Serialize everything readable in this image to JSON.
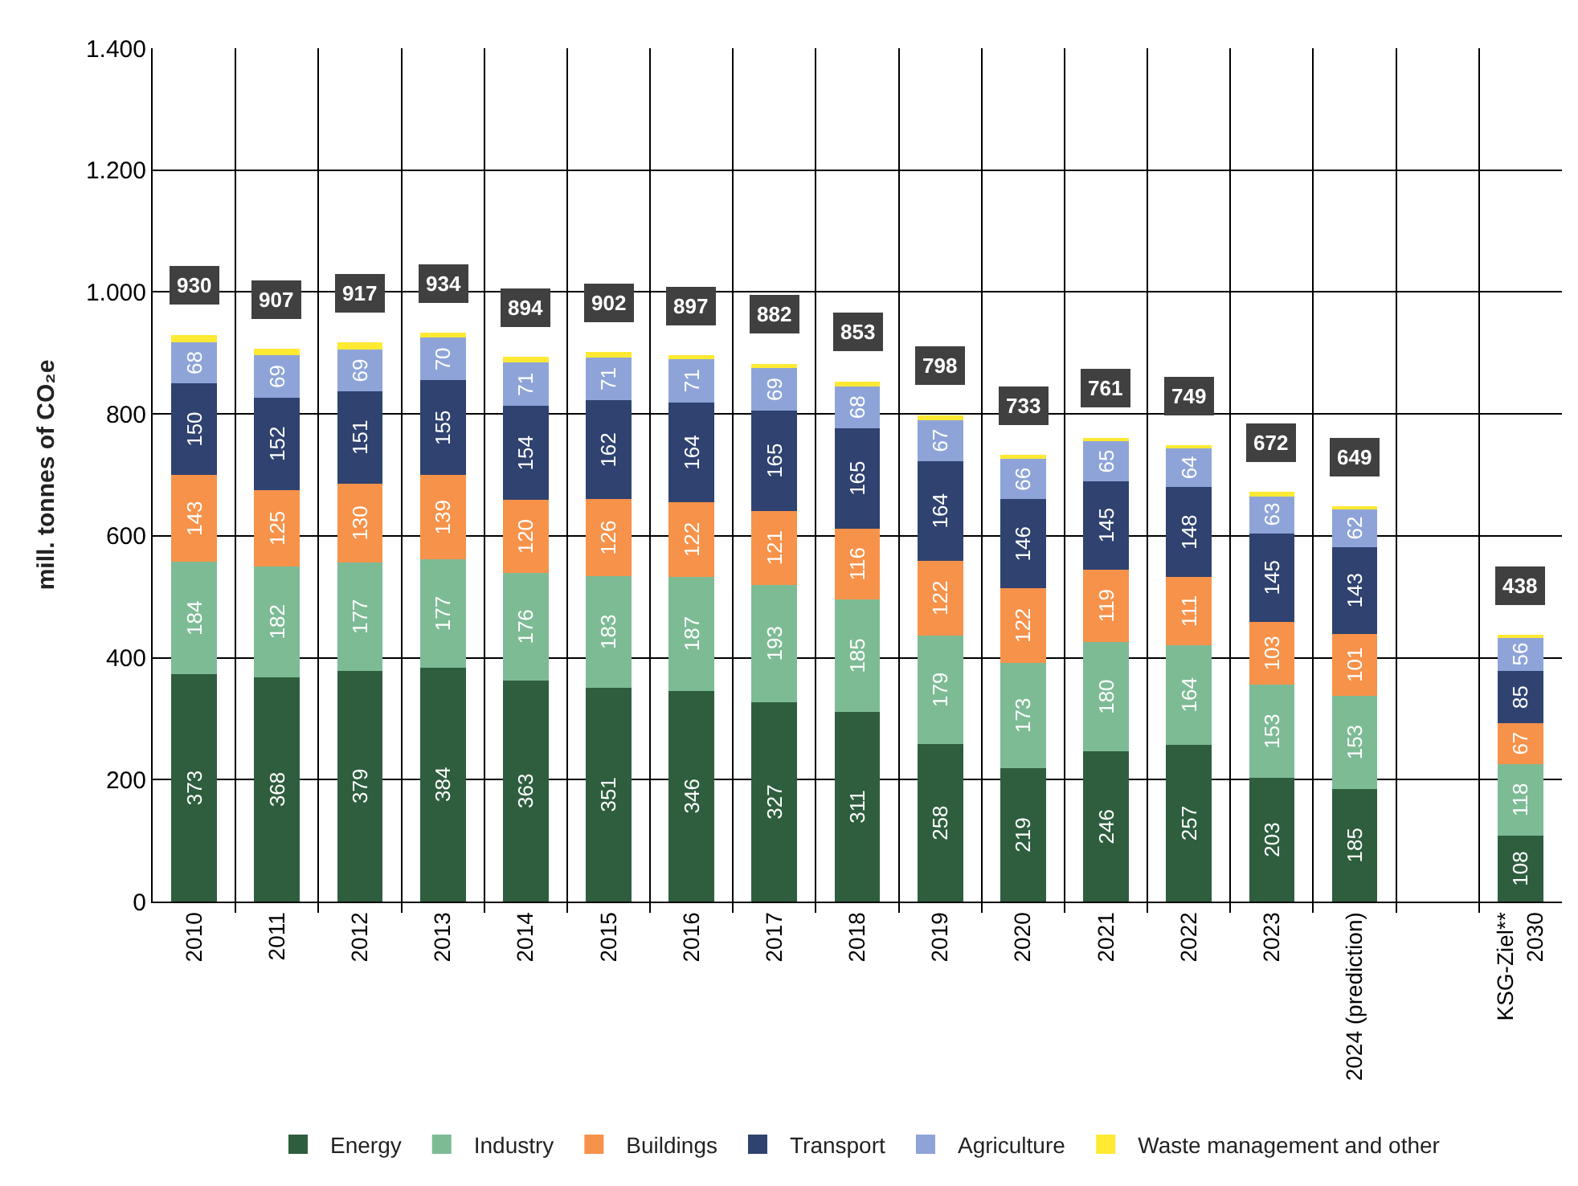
{
  "chart_data": {
    "type": "bar",
    "stacked": true,
    "ylabel": "mill. tonnes of CO₂e",
    "categories": [
      "2010",
      "2011",
      "2012",
      "2013",
      "2014",
      "2015",
      "2016",
      "2017",
      "2018",
      "2019",
      "2020",
      "2021",
      "2022",
      "2023",
      "2024 (prediction)",
      null,
      "KSG-Ziel**\n2030"
    ],
    "series": [
      {
        "name": "Energy",
        "color": "#2e5e3e",
        "values": [
          373,
          368,
          379,
          384,
          363,
          351,
          346,
          327,
          311,
          258,
          219,
          246,
          257,
          203,
          185,
          null,
          108
        ],
        "value_labels": [
          "373",
          "368",
          "379",
          "384",
          "363",
          "351",
          "346",
          "327",
          "311",
          "258",
          "219",
          "246",
          "257",
          "203",
          "185",
          null,
          "108"
        ]
      },
      {
        "name": "Industry",
        "color": "#7dbb95",
        "values": [
          184,
          182,
          177,
          177,
          176,
          183,
          187,
          193,
          185,
          179,
          173,
          180,
          164,
          153,
          153,
          null,
          118
        ],
        "value_labels": [
          "184",
          "182",
          "177",
          "177",
          "176",
          "183",
          "187",
          "193",
          "185",
          "179",
          "173",
          "180",
          "164",
          "153",
          "153",
          null,
          "118"
        ]
      },
      {
        "name": "Buildings",
        "color": "#f7924a",
        "values": [
          143,
          125,
          130,
          139,
          120,
          126,
          122,
          121,
          116,
          122,
          122,
          119,
          111,
          103,
          101,
          null,
          67
        ],
        "value_labels": [
          "143",
          "125",
          "130",
          "139",
          "120",
          "126",
          "122",
          "121",
          "116",
          "122",
          "122",
          "119",
          "111",
          "103",
          "101",
          null,
          "67"
        ]
      },
      {
        "name": "Transport",
        "color": "#2f4270",
        "values": [
          150,
          152,
          151,
          155,
          154,
          162,
          164,
          165,
          165,
          164,
          146,
          145,
          148,
          145,
          143,
          null,
          85
        ],
        "value_labels": [
          "150",
          "152",
          "151",
          "155",
          "154",
          "162",
          "164",
          "165",
          "165",
          "164",
          "146",
          "145",
          "148",
          "145",
          "143",
          null,
          "85"
        ]
      },
      {
        "name": "Agriculture",
        "color": "#8ea4d8",
        "values": [
          68,
          69,
          69,
          70,
          71,
          71,
          71,
          69,
          68,
          67,
          66,
          65,
          64,
          63,
          62,
          null,
          56
        ],
        "value_labels": [
          "68",
          "69",
          "69",
          "70",
          "71",
          "71",
          "71",
          "69",
          "68",
          "67",
          "66",
          "65",
          "64",
          "63",
          "62",
          null,
          "56"
        ]
      },
      {
        "name": "Waste management and other",
        "color": "#ffe933",
        "values": [
          12,
          11,
          11,
          9,
          10,
          9,
          7,
          7,
          8,
          8,
          7,
          6,
          5,
          5,
          5,
          null,
          4
        ]
      }
    ],
    "totals": [
      "930",
      "907",
      "917",
      "934",
      "894",
      "902",
      "897",
      "882",
      "853",
      "798",
      "733",
      "761",
      "749",
      "672",
      "649",
      null,
      "438"
    ],
    "ylim": [
      0,
      1400
    ],
    "yticks": [
      0,
      200,
      400,
      600,
      800,
      {
        "value": 1000,
        "label": "1.000"
      },
      {
        "value": 1200,
        "label": "1.200"
      },
      {
        "value": 1400,
        "label": "1.400"
      }
    ],
    "grid": true,
    "legend": "bottom"
  }
}
